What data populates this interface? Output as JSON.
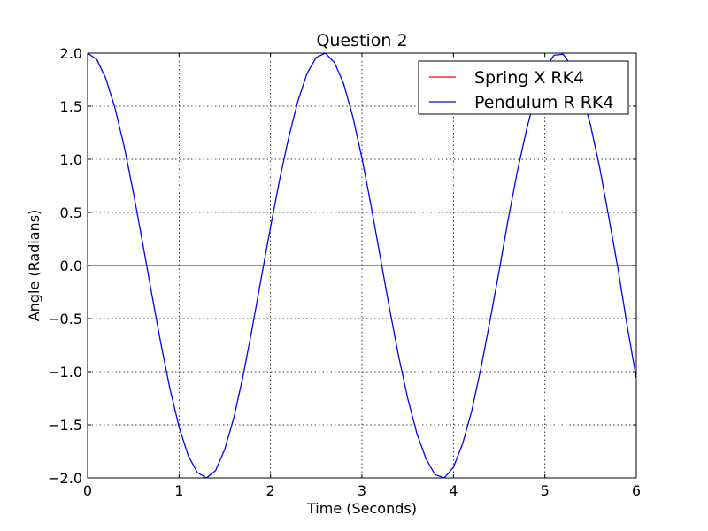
{
  "chart_data": {
    "type": "line",
    "title": "Question 2",
    "xlabel": "Time (Seconds)",
    "ylabel": "Angle (Radians)",
    "xlim": [
      0,
      6
    ],
    "ylim": [
      -2.0,
      2.0
    ],
    "x_ticks": [
      0,
      1,
      2,
      3,
      4,
      5,
      6
    ],
    "x_tick_labels": [
      "0",
      "1",
      "2",
      "3",
      "4",
      "5",
      "6"
    ],
    "y_ticks": [
      -2.0,
      -1.5,
      -1.0,
      -0.5,
      0.0,
      0.5,
      1.0,
      1.5,
      2.0
    ],
    "y_tick_labels": [
      "−2.0",
      "−1.5",
      "−1.0",
      "−0.5",
      "0.0",
      "0.5",
      "1.0",
      "1.5",
      "2.0"
    ],
    "grid": true,
    "legend_position": "top-right",
    "series": [
      {
        "name": "Spring X RK4",
        "color": "#ff0000",
        "x": [
          0,
          6
        ],
        "y": [
          0.0,
          0.0
        ]
      },
      {
        "name": "Pendulum R RK4",
        "color": "#0000ff",
        "x": [
          0.0,
          0.1,
          0.2,
          0.3,
          0.4,
          0.5,
          0.6,
          0.7,
          0.8,
          0.9,
          1.0,
          1.1,
          1.2,
          1.3,
          1.4,
          1.5,
          1.6,
          1.7,
          1.8,
          1.9,
          2.0,
          2.1,
          2.2,
          2.3,
          2.4,
          2.5,
          2.6,
          2.7,
          2.8,
          2.9,
          3.0,
          3.1,
          3.2,
          3.3,
          3.4,
          3.5,
          3.6,
          3.7,
          3.8,
          3.9,
          4.0,
          4.1,
          4.2,
          4.3,
          4.4,
          4.5,
          4.6,
          4.7,
          4.8,
          4.9,
          5.0,
          5.1,
          5.2,
          5.3,
          5.4,
          5.5,
          5.6,
          5.7,
          5.8,
          5.9,
          6.0
        ],
        "y": [
          2.0,
          1.94,
          1.76,
          1.48,
          1.12,
          0.69,
          0.22,
          -0.26,
          -0.73,
          -1.16,
          -1.52,
          -1.79,
          -1.95,
          -2.0,
          -1.93,
          -1.73,
          -1.43,
          -1.04,
          -0.59,
          -0.11,
          0.36,
          0.81,
          1.21,
          1.55,
          1.81,
          1.96,
          2.0,
          1.91,
          1.71,
          1.4,
          1.01,
          0.56,
          0.08,
          -0.4,
          -0.85,
          -1.25,
          -1.58,
          -1.82,
          -1.97,
          -2.0,
          -1.9,
          -1.68,
          -1.37,
          -0.97,
          -0.52,
          -0.05,
          0.44,
          0.89,
          1.28,
          1.61,
          1.85,
          1.98,
          1.99,
          1.87,
          1.64,
          1.32,
          0.92,
          0.45,
          -0.03,
          -0.57,
          -1.06
        ]
      }
    ]
  }
}
